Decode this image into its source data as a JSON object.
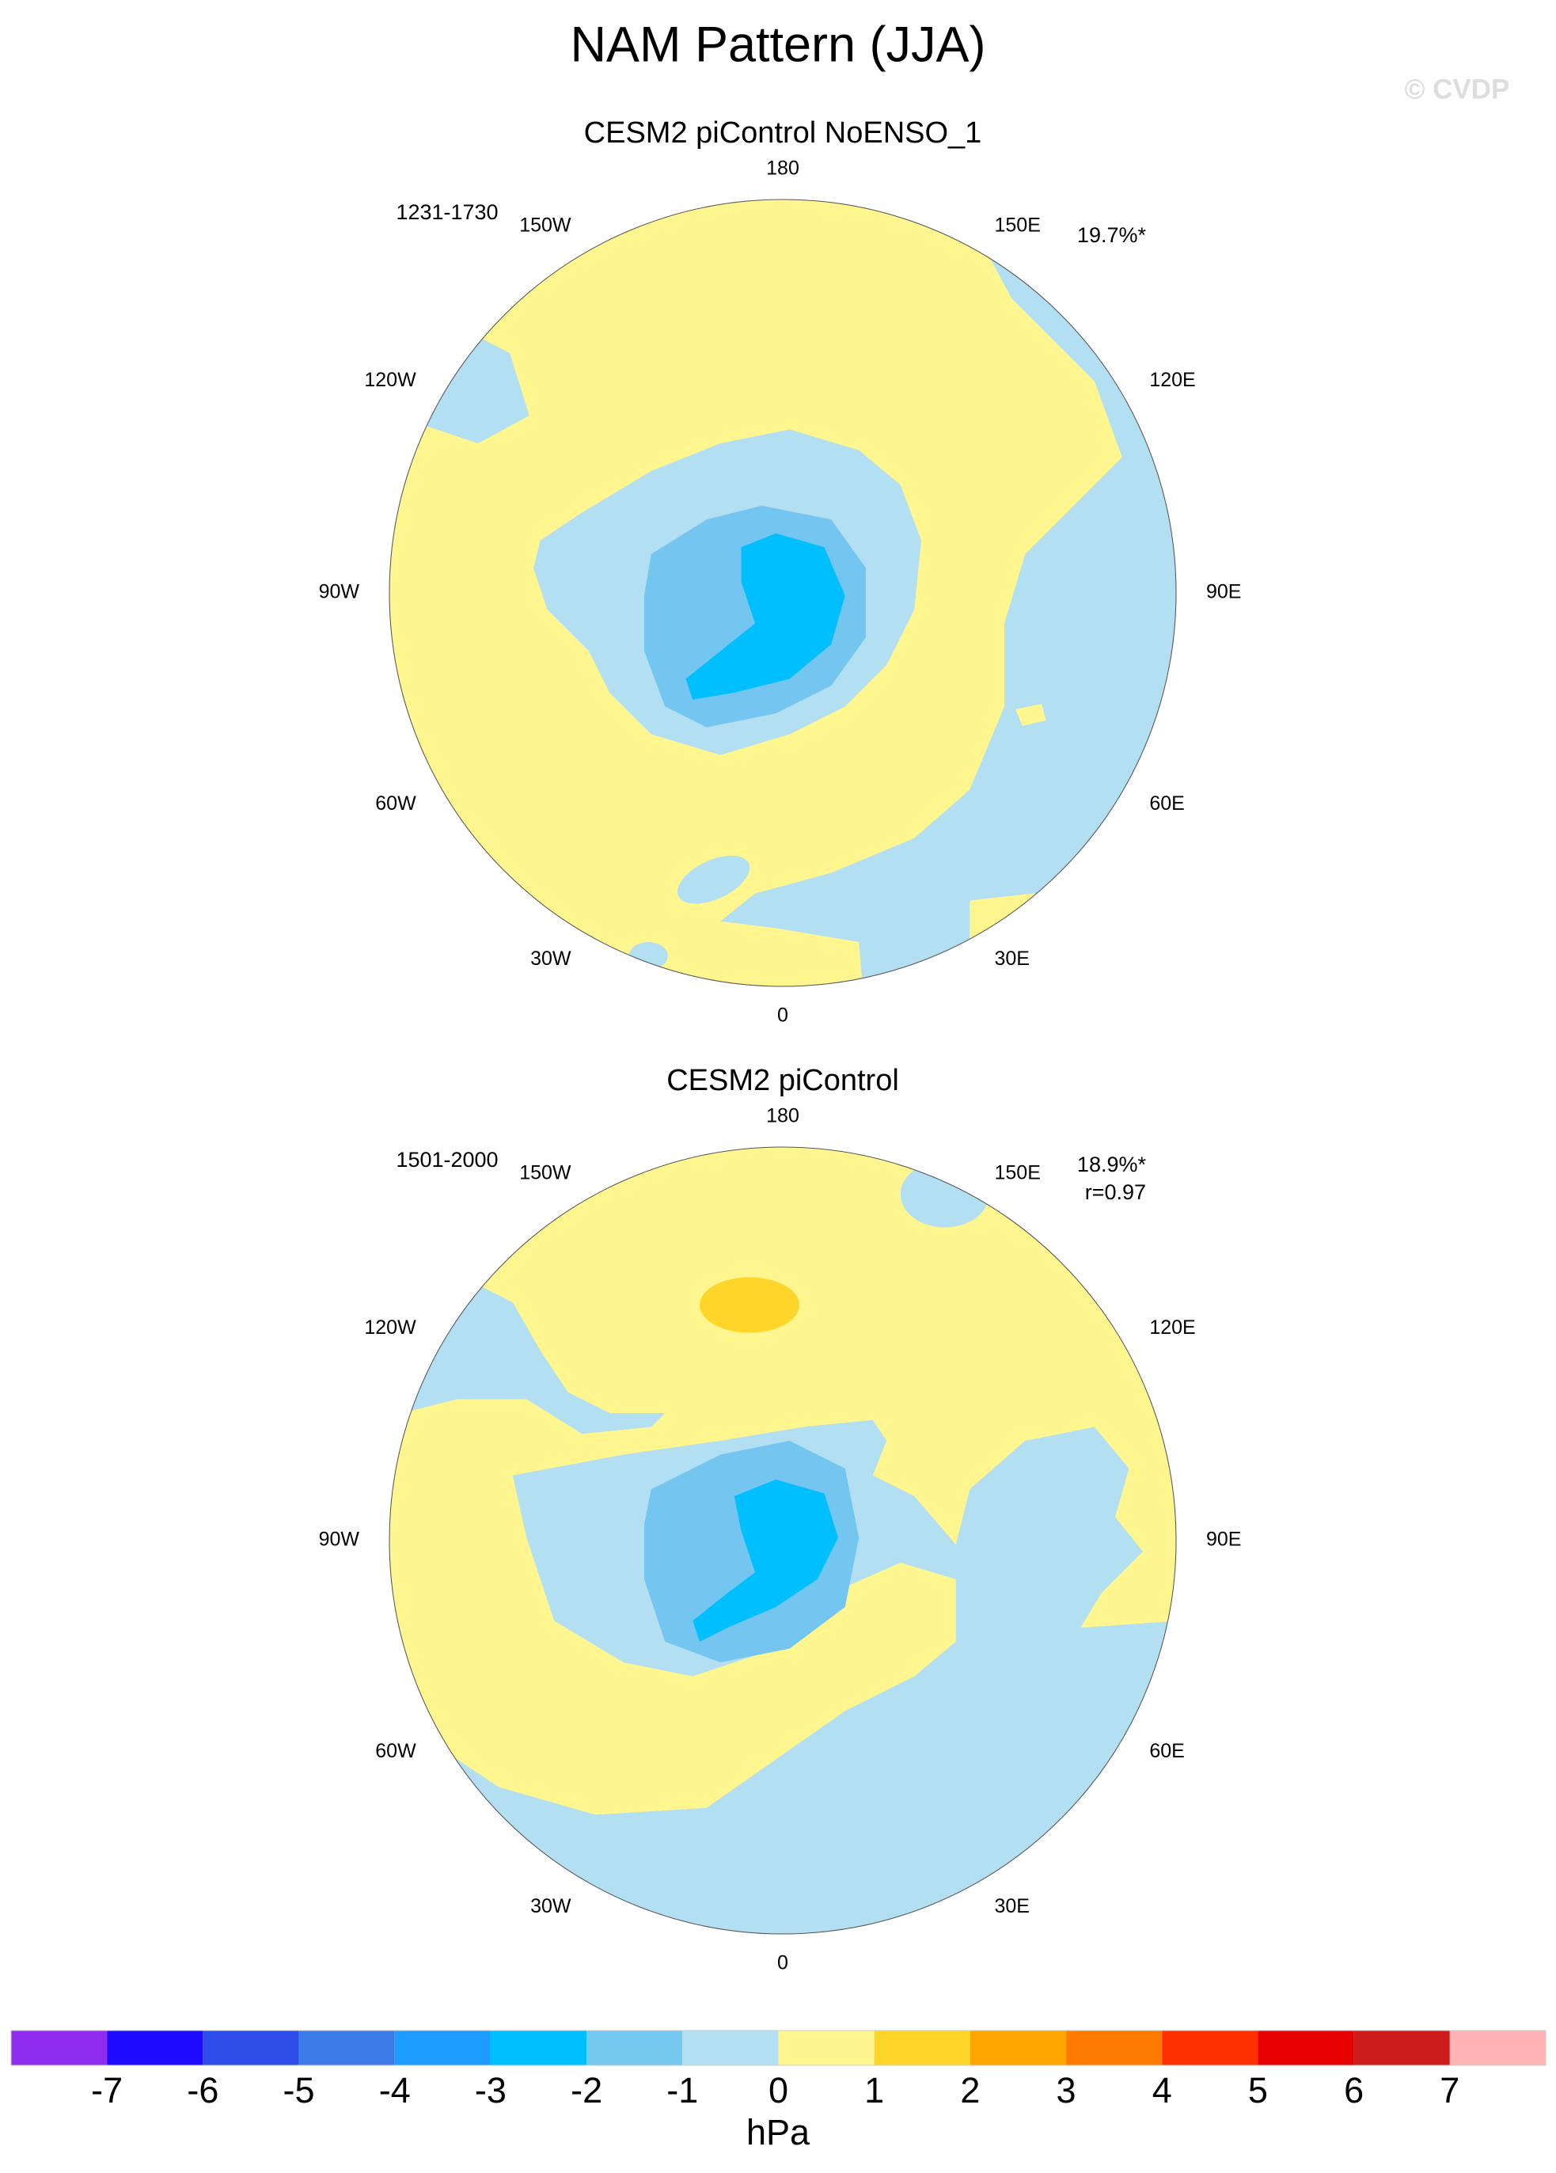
{
  "title": "NAM Pattern (JJA)",
  "watermark": "© CVDP",
  "panels": [
    {
      "title": "CESM2 piControl NoENSO_1",
      "period": "1231-1730",
      "stats": [
        "19.7%*"
      ],
      "lon_labels": [
        "180",
        "150E",
        "120E",
        "90E",
        "60E",
        "30E",
        "0",
        "30W",
        "60W",
        "90W",
        "120W",
        "150W"
      ]
    },
    {
      "title": "CESM2 piControl",
      "period": "1501-2000",
      "stats": [
        "18.9%*",
        "r=0.97"
      ],
      "lon_labels": [
        "180",
        "150E",
        "120E",
        "90E",
        "60E",
        "30E",
        "0",
        "30W",
        "60W",
        "90W",
        "120W",
        "150W"
      ]
    }
  ],
  "colorbar": {
    "levels": [
      -7,
      -6,
      -5,
      -4,
      -3,
      -2,
      -1,
      0,
      1,
      2,
      3,
      4,
      5,
      6,
      7
    ],
    "colors": [
      "#8f2cf0",
      "#1e0aff",
      "#2d4ce8",
      "#3a7be8",
      "#1e9bff",
      "#00bfff",
      "#75c9f0",
      "#b3dff2",
      "#fff68f",
      "#ffd52a",
      "#ffa500",
      "#ff7b00",
      "#ff3000",
      "#e60000",
      "#cd1c1c",
      "#ffb3b5"
    ],
    "units": "hPa"
  }
}
